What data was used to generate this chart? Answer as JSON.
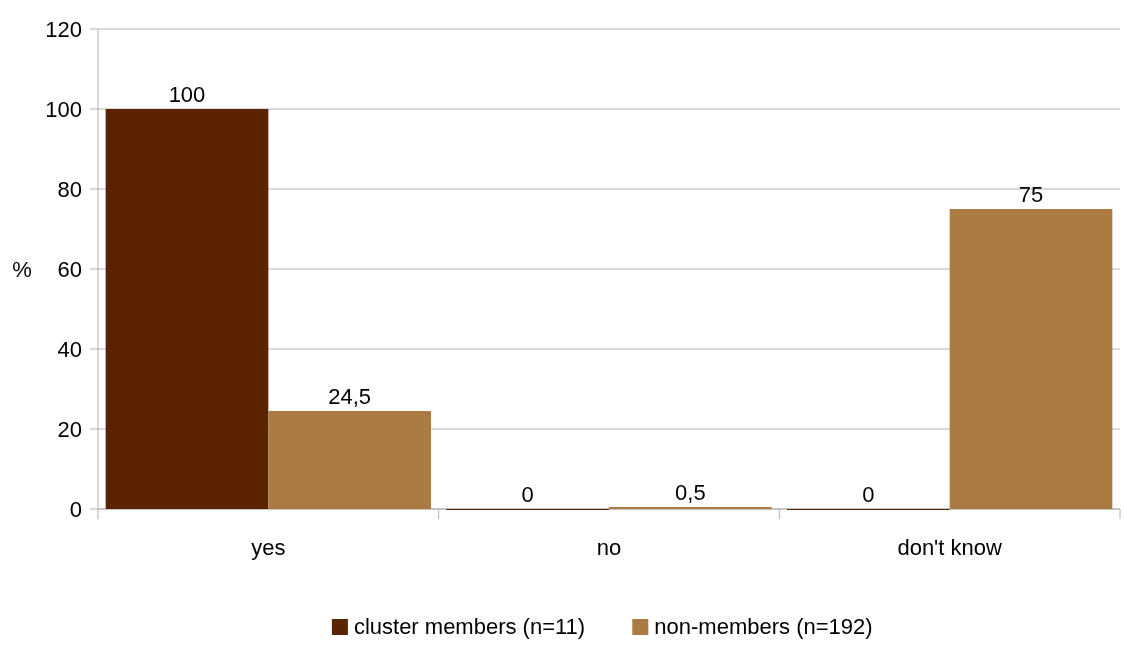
{
  "chart_data": {
    "type": "bar",
    "ylabel": "%",
    "categories": [
      "yes",
      "no",
      "don't know"
    ],
    "series": [
      {
        "name": "cluster members (n=11)",
        "color": "#5c2300",
        "values": [
          100,
          0,
          0
        ],
        "value_labels": [
          "100",
          "0",
          "0"
        ]
      },
      {
        "name": "non-members (n=192)",
        "color": "#ab7b43",
        "values": [
          24.5,
          0.5,
          75
        ],
        "value_labels": [
          "24,5",
          "0,5",
          "75"
        ]
      }
    ],
    "ylim": [
      0,
      120
    ],
    "yticks": [
      0,
      20,
      40,
      60,
      80,
      100,
      120
    ],
    "grid": "y",
    "legend": "bottom"
  }
}
